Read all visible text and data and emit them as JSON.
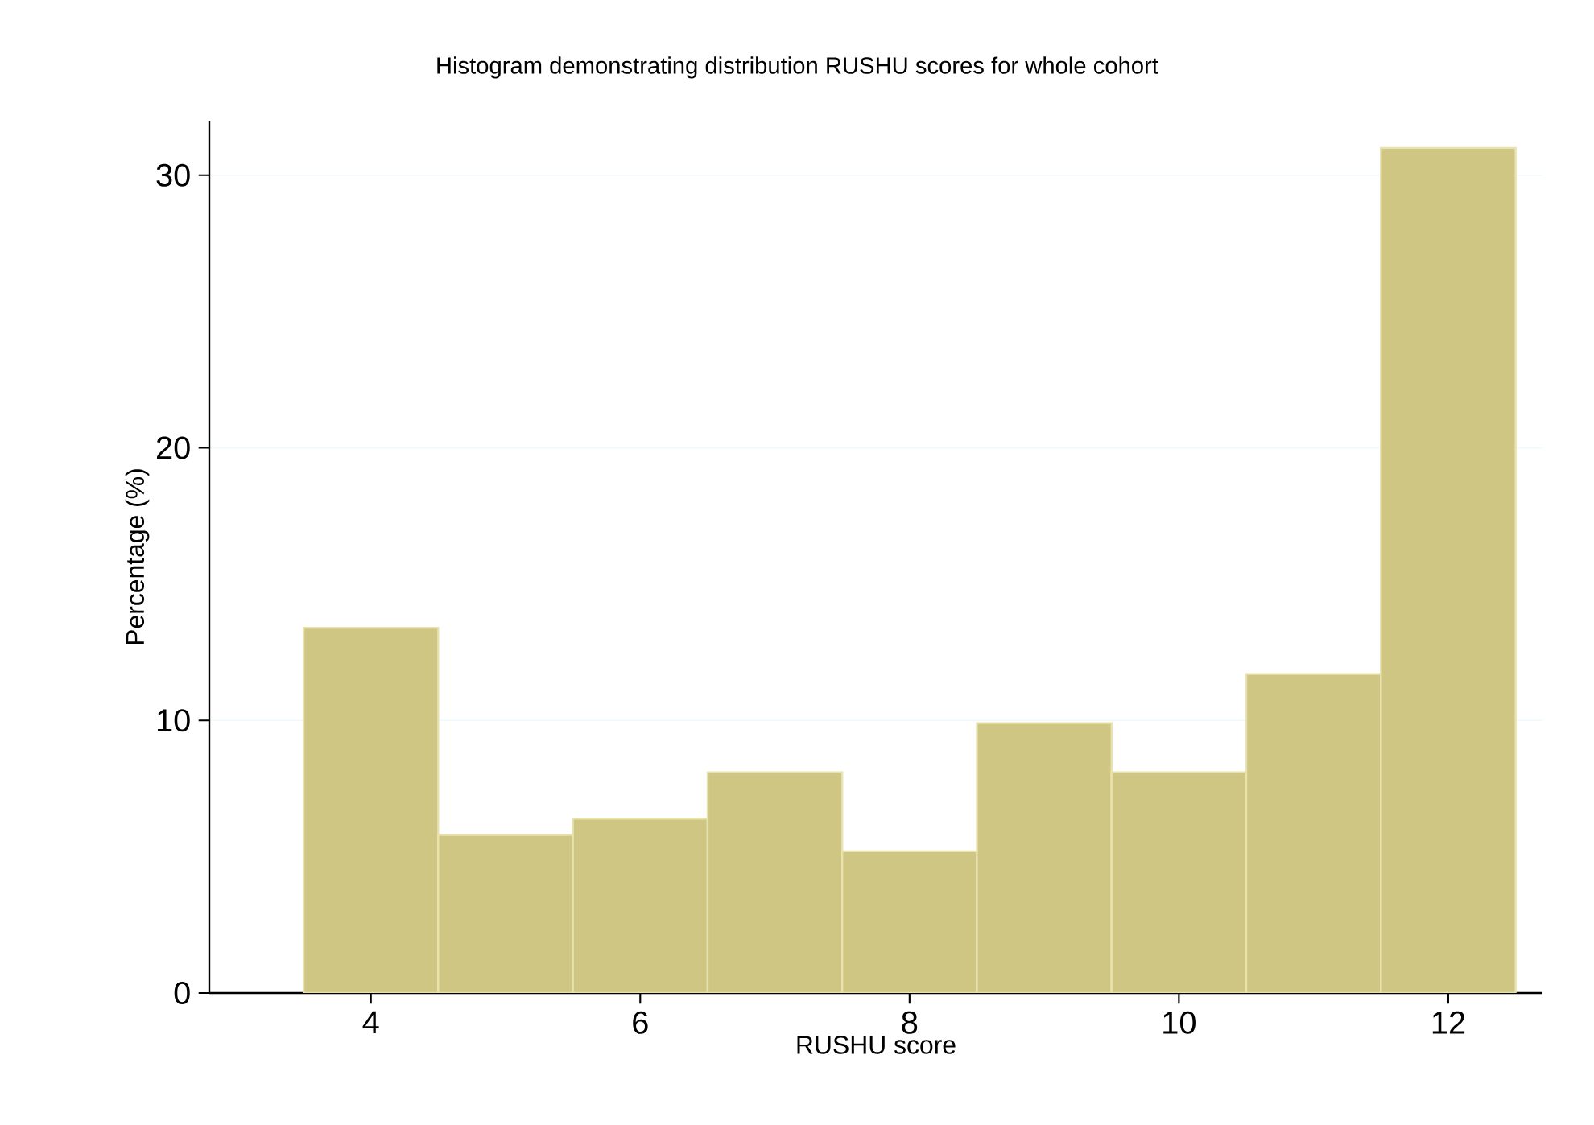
{
  "chart_data": {
    "type": "histogram",
    "title": "Histogram demonstrating distribution RUSHU scores for whole cohort",
    "xlabel": "RUSHU score",
    "ylabel": "Percentage (%)",
    "bins": [
      3.5,
      4.5,
      5.5,
      6.5,
      7.5,
      8.5,
      9.5,
      10.5,
      11.5,
      12.5
    ],
    "values": [
      13.4,
      5.8,
      6.4,
      8.1,
      5.2,
      9.9,
      8.1,
      11.7,
      31.0
    ],
    "color": "#cfc683",
    "xlim": [
      2.8,
      12.7
    ],
    "ylim": [
      0,
      32
    ],
    "xticks": [
      4,
      6,
      8,
      10,
      12
    ],
    "yticks": [
      0,
      10,
      20,
      30
    ],
    "grid": "y"
  }
}
